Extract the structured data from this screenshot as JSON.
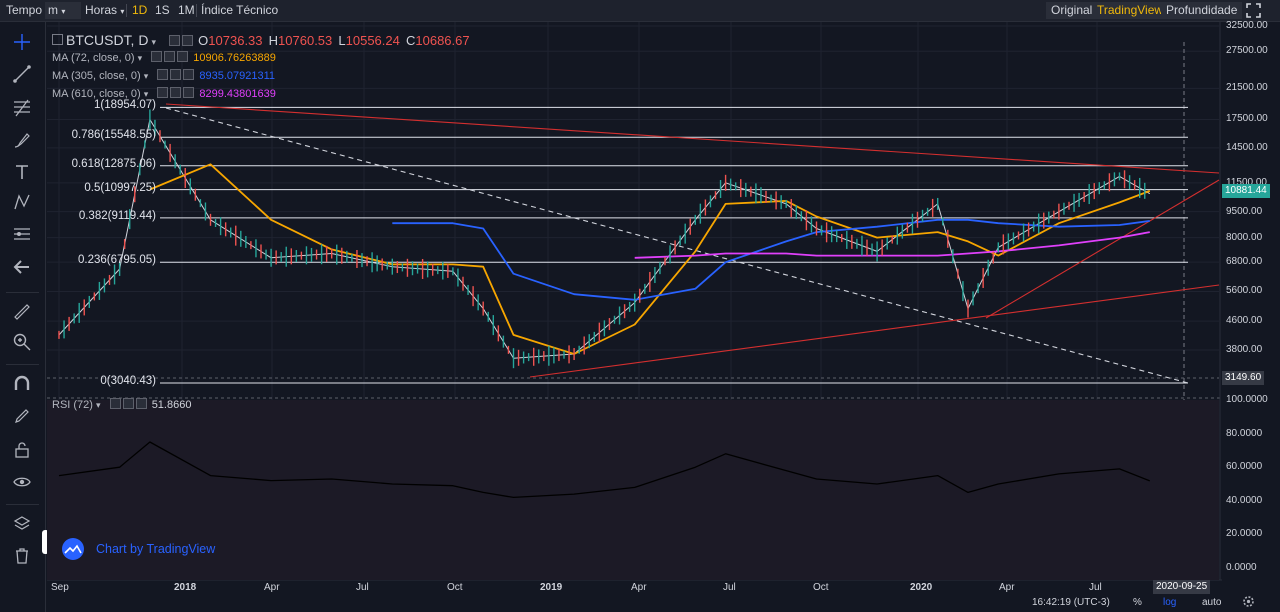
{
  "toolbar": {
    "tempo": "Tempo",
    "interval_select": "m",
    "horas": "Horas",
    "intervals": [
      "1D",
      "1S",
      "1M"
    ],
    "active_interval": "1D",
    "indicator": "Índice Técnico",
    "views": [
      "Original",
      "TradingView",
      "Profundidade"
    ],
    "active_view": "TradingView"
  },
  "legend": {
    "symbol": "BTCUSDT, D",
    "ohlc": [
      {
        "k": "O",
        "v": "10736.33"
      },
      {
        "k": "H",
        "v": "10760.53"
      },
      {
        "k": "L",
        "v": "10556.24"
      },
      {
        "k": "C",
        "v": "10686.67"
      }
    ],
    "ma": [
      {
        "name": "MA (72, close, 0)",
        "value": "10906.76263889",
        "color": "#f7a600"
      },
      {
        "name": "MA (305, close, 0)",
        "value": "8935.07921311",
        "color": "#2962ff"
      },
      {
        "name": "MA (610, close, 0)",
        "value": "8299.43801639",
        "color": "#e040fb"
      }
    ],
    "rsi_name": "RSI (72)",
    "rsi_value": "51.8660"
  },
  "fib_levels": [
    {
      "label": "1(18954.07)",
      "price": 18954.07
    },
    {
      "label": "0.786(15548.55)",
      "price": 15548.55
    },
    {
      "label": "0.618(12875.06)",
      "price": 12875.06
    },
    {
      "label": "0.5(10997.25)",
      "price": 10997.25
    },
    {
      "label": "0.382(9119.44)",
      "price": 9119.44
    },
    {
      "label": "0.236(6795.05)",
      "price": 6795.05
    },
    {
      "label": "0(3040.43)",
      "price": 3040.43
    }
  ],
  "price_badges": [
    {
      "text": "10881.44",
      "color": "#26a69a",
      "price": 10881.44
    },
    {
      "text": "3149.60",
      "color": "#363a45",
      "price": 3149.6
    }
  ],
  "date_badge": "2020-09-25",
  "watermark": "Chart by TradingView",
  "status": {
    "time": "16:42:19 (UTC-3)",
    "percent": "%",
    "log": "log",
    "auto": "auto"
  },
  "chart_data": {
    "type": "line",
    "title": "BTCUSDT, D",
    "y_scale": "log",
    "price_axis_ticks": [
      32500,
      27500,
      21500,
      17500,
      14500,
      11500,
      9500,
      8000,
      6800,
      5600,
      4600,
      3800
    ],
    "rsi_axis_ticks": [
      "100.0000",
      "80.0000",
      "60.0000",
      "40.0000",
      "20.0000",
      "0.0000"
    ],
    "x_tick_labels": [
      "Sep",
      "2018",
      "Apr",
      "Jul",
      "Oct",
      "2019",
      "Apr",
      "Jul",
      "Oct",
      "2020",
      "Apr",
      "Jul"
    ],
    "x_dates": [
      "2017-09",
      "2017-11",
      "2017-12",
      "2018-02",
      "2018-04",
      "2018-06",
      "2018-08",
      "2018-10",
      "2018-11",
      "2018-12",
      "2019-02",
      "2019-04",
      "2019-06",
      "2019-07",
      "2019-09",
      "2019-10",
      "2019-12",
      "2020-02",
      "2020-03",
      "2020-04",
      "2020-06",
      "2020-08",
      "2020-09"
    ],
    "series": [
      {
        "name": "BTCUSDT",
        "color": "#d1d4dc",
        "values": [
          4200,
          6500,
          17500,
          9000,
          7000,
          7200,
          6600,
          6400,
          5000,
          3600,
          3700,
          5200,
          9000,
          11500,
          10000,
          8500,
          7300,
          10000,
          5000,
          7500,
          9500,
          12000,
          10700
        ]
      },
      {
        "name": "MA (72, close, 0)",
        "color": "#f7a600",
        "values": [
          null,
          null,
          11000,
          13000,
          9000,
          7400,
          6700,
          6700,
          6600,
          4200,
          3700,
          4500,
          7300,
          10000,
          10200,
          9200,
          8000,
          8300,
          7800,
          7100,
          8800,
          10100,
          10900
        ]
      },
      {
        "name": "MA (305, close, 0)",
        "color": "#2962ff",
        "values": [
          null,
          null,
          null,
          null,
          null,
          null,
          8800,
          8800,
          8500,
          6300,
          5500,
          5300,
          5700,
          6800,
          7800,
          8300,
          8600,
          9000,
          9000,
          8800,
          8600,
          8700,
          8935
        ]
      },
      {
        "name": "MA (610, close, 0)",
        "color": "#e040fb",
        "values": [
          null,
          null,
          null,
          null,
          null,
          null,
          null,
          null,
          null,
          null,
          null,
          7000,
          7100,
          7200,
          7200,
          7100,
          7100,
          7100,
          7200,
          7300,
          7600,
          8000,
          8299
        ]
      },
      {
        "name": "RSI (72)",
        "color": "#000000",
        "values": [
          55,
          60,
          75,
          55,
          52,
          53,
          50,
          49,
          45,
          42,
          44,
          48,
          60,
          68,
          58,
          53,
          50,
          55,
          45,
          50,
          56,
          59,
          51.87
        ]
      }
    ],
    "ylim_price": [
      3000,
      32500
    ],
    "ylim_rsi": [
      0,
      100
    ],
    "grid": true
  }
}
